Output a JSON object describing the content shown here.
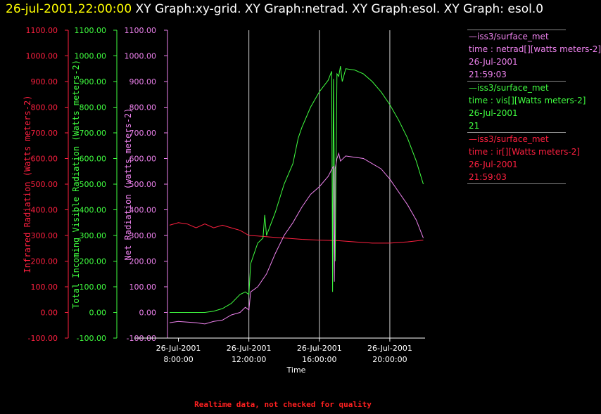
{
  "header": {
    "date": "26-jul-2001,22:00:00",
    "text": " XY Graph:xy-grid.  XY Graph:netrad.  XY Graph:esol.  XY Graph: esol.0"
  },
  "footer": "Realtime data, not checked for quality",
  "legend": [
    {
      "source": "—iss3/surface_met",
      "variable": "time : netrad[][watts meters-2]",
      "date": "26-Jul-2001",
      "time": "21:59:03",
      "color": "#ee82ee"
    },
    {
      "source": "—iss3/surface_met",
      "variable": "time : vis[][Watts meters-2]",
      "date": "26-Jul-2001",
      "time": "21",
      "color": "#40ff40"
    },
    {
      "source": "—iss3/surface_met",
      "variable": "time : ir[][Watts meters-2]",
      "date": "26-Jul-2001",
      "time": "21:59:03",
      "color": "#ff2040"
    }
  ],
  "chart_data": {
    "type": "line",
    "xlabel": "Time",
    "x_ticks": [
      {
        "hour": 8,
        "date": "26-Jul-2001",
        "time": "8:00:00"
      },
      {
        "hour": 12,
        "date": "26-Jul-2001",
        "time": "12:00:00"
      },
      {
        "hour": 16,
        "date": "26-Jul-2001",
        "time": "16:00:00"
      },
      {
        "hour": 20,
        "date": "26-Jul-2001",
        "time": "20:00:00"
      }
    ],
    "xlim_hours": [
      7.5,
      22
    ],
    "vertical_gridlines_hours": [
      12,
      16,
      20
    ],
    "axes": [
      {
        "label": "Infrared Radiation (Watts meters-2)",
        "color": "#ff2040",
        "ylim": [
          -100,
          1100
        ]
      },
      {
        "label": "Total Incoming Visible Radiation (Watts meters-2)",
        "color": "#40ff40",
        "ylim": [
          -100,
          1100
        ]
      },
      {
        "label": "Net Radiation (watts meters-2)",
        "color": "#ee82ee",
        "ylim": [
          -100,
          1100
        ]
      }
    ],
    "y_ticks": [
      "1100.00",
      "1000.00",
      "900.00",
      "800.00",
      "700.00",
      "600.00",
      "500.00",
      "400.00",
      "300.00",
      "200.00",
      "100.00",
      "0.00",
      "-100.00"
    ],
    "y_tick_values": [
      1100,
      1000,
      900,
      800,
      700,
      600,
      500,
      400,
      300,
      200,
      100,
      0,
      -100
    ],
    "series": [
      {
        "name": "ir",
        "color": "#ff2040",
        "x": [
          7.5,
          8.0,
          8.5,
          9.0,
          9.5,
          10.0,
          10.5,
          11.0,
          11.5,
          12.0,
          12.5,
          13.0,
          14.0,
          15.0,
          16.0,
          17.0,
          18.0,
          19.0,
          20.0,
          21.0,
          21.9
        ],
        "y": [
          340,
          350,
          345,
          330,
          345,
          330,
          340,
          330,
          320,
          300,
          298,
          295,
          290,
          285,
          282,
          280,
          275,
          270,
          270,
          275,
          282
        ]
      },
      {
        "name": "vis",
        "color": "#40ff40",
        "x": [
          7.5,
          8.5,
          9.5,
          10.0,
          10.5,
          11.0,
          11.5,
          11.8,
          12.0,
          12.1,
          12.5,
          12.8,
          12.9,
          13.0,
          13.5,
          14.0,
          14.5,
          14.8,
          15.0,
          15.5,
          16.0,
          16.5,
          16.7,
          16.75,
          16.8,
          16.9,
          17.0,
          17.1,
          17.2,
          17.3,
          17.5,
          18.0,
          18.5,
          19.0,
          19.5,
          20.0,
          20.5,
          21.0,
          21.5,
          21.9
        ],
        "y": [
          0,
          0,
          0,
          5,
          15,
          35,
          70,
          80,
          70,
          190,
          270,
          290,
          380,
          300,
          390,
          500,
          580,
          680,
          720,
          800,
          860,
          905,
          940,
          80,
          910,
          200,
          930,
          920,
          960,
          900,
          950,
          945,
          930,
          900,
          860,
          810,
          750,
          680,
          590,
          500
        ]
      },
      {
        "name": "netrad",
        "color": "#ee82ee",
        "x": [
          7.5,
          8.0,
          9.0,
          9.5,
          10.0,
          10.5,
          11.0,
          11.5,
          11.8,
          12.0,
          12.1,
          12.5,
          13.0,
          13.5,
          14.0,
          14.5,
          15.0,
          15.5,
          16.0,
          16.5,
          16.8,
          16.85,
          16.9,
          17.0,
          17.1,
          17.2,
          17.5,
          18.0,
          18.5,
          19.0,
          19.5,
          20.0,
          20.5,
          21.0,
          21.5,
          21.9
        ],
        "y": [
          -40,
          -35,
          -40,
          -45,
          -35,
          -30,
          -10,
          0,
          20,
          10,
          80,
          100,
          150,
          230,
          300,
          350,
          410,
          460,
          490,
          530,
          570,
          120,
          560,
          600,
          620,
          590,
          610,
          605,
          600,
          580,
          560,
          520,
          470,
          420,
          360,
          290
        ]
      }
    ]
  }
}
